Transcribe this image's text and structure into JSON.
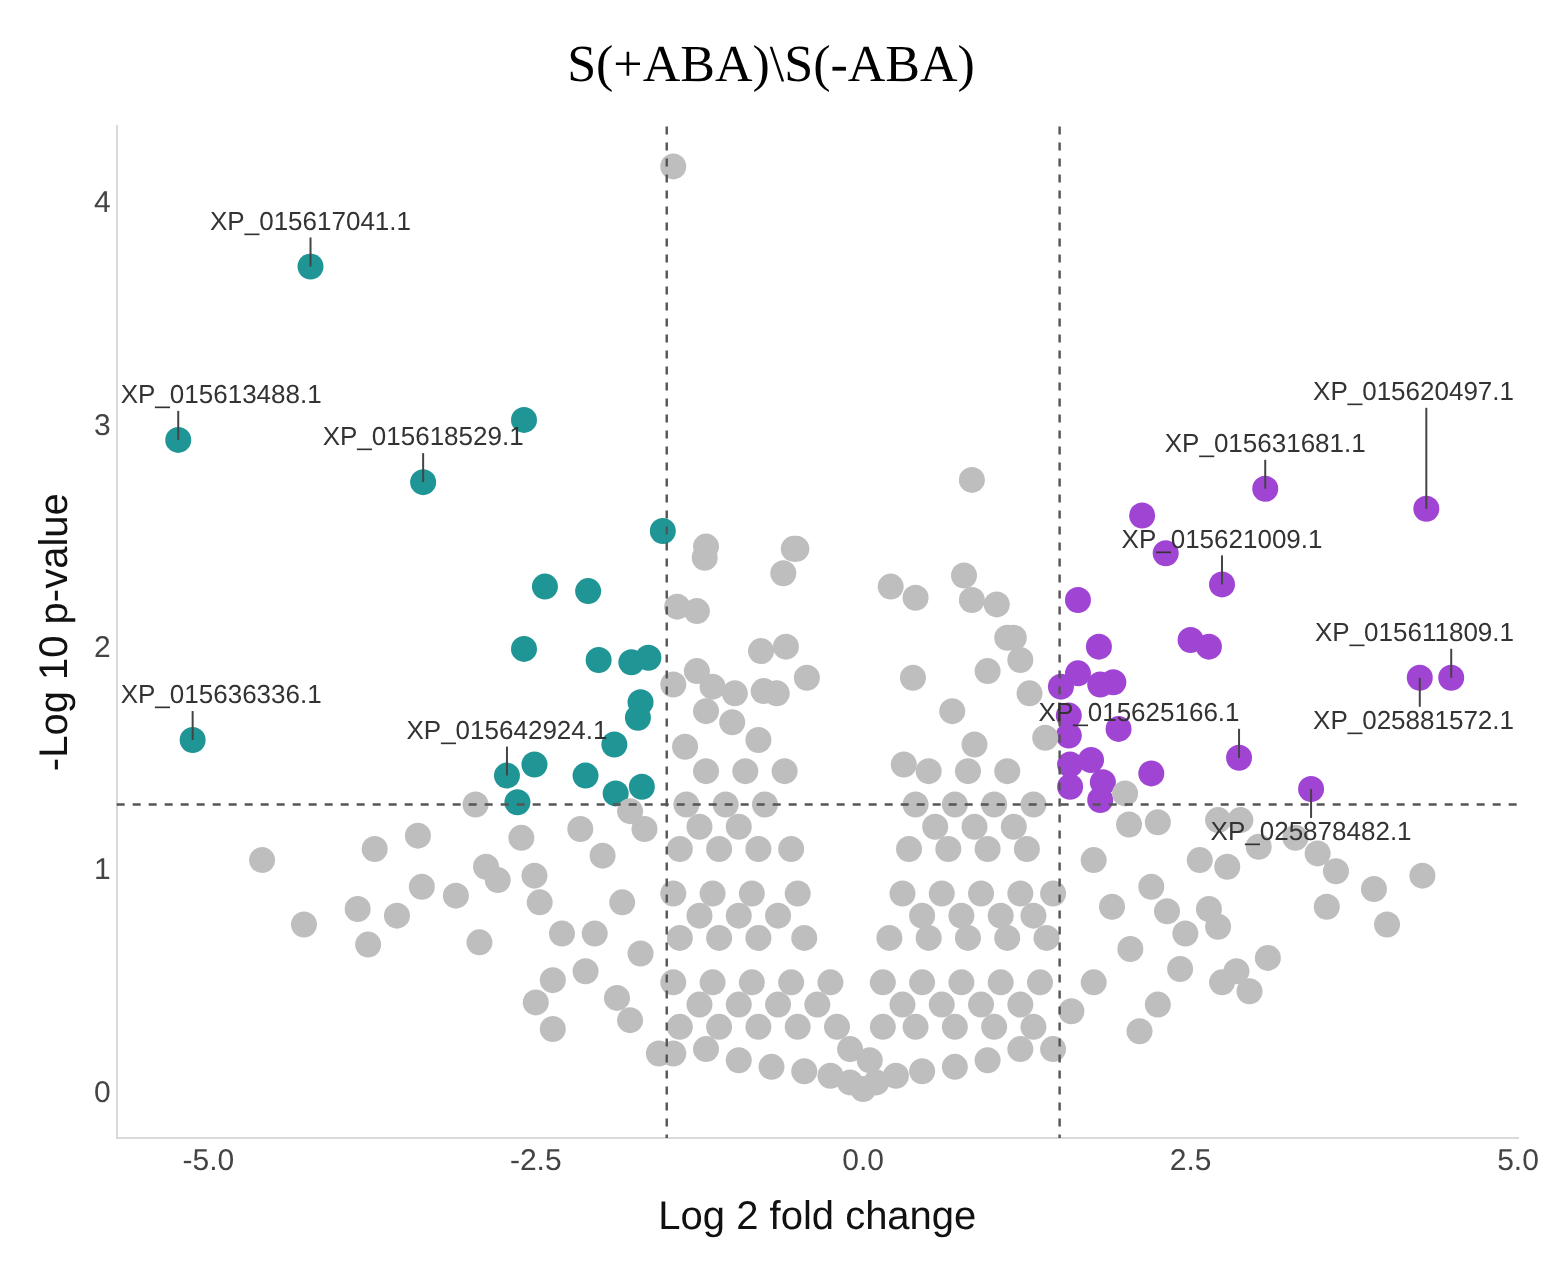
{
  "chart_data": {
    "type": "scatter",
    "title": "S(+ABA)\\S(-ABA)",
    "xlabel": "Log 2 fold change",
    "ylabel": "-Log 10 p-value",
    "xlim": [
      -5.7,
      5.0
    ],
    "ylim": [
      -0.2,
      4.35
    ],
    "xticks": [
      {
        "value": -5,
        "label": "-5.0"
      },
      {
        "value": -2.5,
        "label": "-2.5"
      },
      {
        "value": 0,
        "label": "0.0"
      },
      {
        "value": 2.5,
        "label": "2.5"
      },
      {
        "value": 5,
        "label": "5.0"
      }
    ],
    "yticks": [
      0,
      1,
      2,
      3,
      4
    ],
    "marker": "circle",
    "grid": false,
    "series": [
      {
        "color": "#bebebe",
        "x": [
          -4.59,
          -4.27,
          -3.86,
          -3.78,
          -3.56,
          -3.73,
          -3.4,
          -3.37,
          -3.11,
          -2.93,
          -2.96,
          -2.88,
          -2.79,
          -2.5,
          -2.37,
          -2.37,
          -2.51,
          -2.47,
          -2.61,
          -2.3,
          -2.12,
          -2.16,
          -2.05,
          -1.99,
          -1.88,
          -1.78,
          -1.84,
          -1.7,
          -1.67,
          -1.56,
          -1.78,
          -1.45,
          -1.2,
          -1.21,
          -0.53,
          -0.61,
          -1.42,
          -1.27,
          -0.78,
          -0.59,
          -1.27,
          -1.45,
          -1.15,
          -0.98,
          -0.76,
          -0.66,
          -1.2,
          -1.0,
          -0.8,
          -1.36,
          0.83,
          -0.51,
          0.77,
          0.21,
          0.4,
          0.83,
          1.02,
          1.1,
          1.15,
          0.95,
          0.38,
          -0.43,
          1.2,
          1.27,
          0.68,
          0.85,
          1.39,
          0.31,
          2.03,
          2.25,
          2.57,
          2.64,
          2.32,
          2.46,
          2.71,
          2.42,
          2.25,
          2.11,
          2.85,
          3.09,
          2.95,
          2.74,
          2.78,
          3.02,
          3.3,
          3.47,
          3.61,
          3.54,
          3.9,
          4.0,
          4.27,
          2.88,
          2.71,
          1.76,
          1.9,
          2.04,
          1.76,
          1.59,
          2.0,
          2.2,
          0,
          -0.1,
          0.1,
          -0.25,
          0.25,
          -0.45,
          0.45,
          -0.7,
          0.7,
          -0.95,
          0.95,
          -1.2,
          1.2,
          -1.45,
          1.45,
          -1.4,
          -1.1,
          -0.8,
          -0.5,
          -0.2,
          0.15,
          0.4,
          0.7,
          1.0,
          1.3,
          -1.45,
          -1.15,
          -0.85,
          -0.55,
          -0.25,
          0.15,
          0.45,
          0.75,
          1.05,
          1.35,
          -1.4,
          -1.1,
          -0.8,
          -0.45,
          0.2,
          0.5,
          0.8,
          1.1,
          1.4,
          -1.45,
          -1.15,
          -0.85,
          -0.5,
          0.3,
          0.6,
          0.9,
          1.2,
          1.45,
          -1.4,
          -1.1,
          -0.8,
          -0.55,
          0.35,
          0.65,
          0.95,
          1.25,
          -1.35,
          -1.05,
          -0.75,
          0.4,
          0.7,
          1.0,
          1.3,
          -1.2,
          -0.9,
          -0.6,
          0.5,
          0.8,
          1.1,
          -1.25,
          -0.95,
          -0.65,
          -0.35,
          0.3,
          0.6,
          0.9,
          1.2,
          -1.25,
          -0.95,
          -0.65,
          0.45,
          0.75,
          1.05,
          1.3,
          -1.25,
          -0.95,
          0.55,
          0.85,
          1.15,
          -0.1,
          0.05
        ],
        "values": [
          1.05,
          0.76,
          0.83,
          0.67,
          0.8,
          1.1,
          1.16,
          0.93,
          0.89,
          0.68,
          1.3,
          1.02,
          0.96,
          0.41,
          0.29,
          0.51,
          0.98,
          0.86,
          1.15,
          0.72,
          0.55,
          1.19,
          0.72,
          1.07,
          0.43,
          0.33,
          0.86,
          0.63,
          1.19,
          0.18,
          1.27,
          4.17,
          2.46,
          2.41,
          2.45,
          2.34,
          2.19,
          2.17,
          1.99,
          2.01,
          1.9,
          1.84,
          1.83,
          1.8,
          1.81,
          1.8,
          1.72,
          1.67,
          1.59,
          1.56,
          2.76,
          2.45,
          2.33,
          2.28,
          2.23,
          2.22,
          2.2,
          2.05,
          2.05,
          1.9,
          1.87,
          1.87,
          1.95,
          1.8,
          1.72,
          1.57,
          1.6,
          1.48,
          1.21,
          1.22,
          1.05,
          0.83,
          0.82,
          0.72,
          0.75,
          0.56,
          0.4,
          0.28,
          0.55,
          0.61,
          0.46,
          0.5,
          1.02,
          1.11,
          1.15,
          1.08,
          1.0,
          0.84,
          0.92,
          0.76,
          0.98,
          1.23,
          1.23,
          1.05,
          0.84,
          0.65,
          0.5,
          0.37,
          1.35,
          0.93,
          0.02,
          0.05,
          0.05,
          0.08,
          0.08,
          0.1,
          0.1,
          0.12,
          0.12,
          0.15,
          0.15,
          0.2,
          0.2,
          0.18,
          0.2,
          0.3,
          0.3,
          0.3,
          0.3,
          0.3,
          0.3,
          0.3,
          0.3,
          0.3,
          0.3,
          0.5,
          0.5,
          0.5,
          0.5,
          0.5,
          0.5,
          0.5,
          0.5,
          0.5,
          0.5,
          0.7,
          0.7,
          0.7,
          0.7,
          0.7,
          0.7,
          0.7,
          0.7,
          0.7,
          0.9,
          0.9,
          0.9,
          0.9,
          0.9,
          0.9,
          0.9,
          0.9,
          0.9,
          1.1,
          1.1,
          1.1,
          1.1,
          1.1,
          1.1,
          1.1,
          1.1,
          1.3,
          1.3,
          1.3,
          1.3,
          1.3,
          1.3,
          1.3,
          1.45,
          1.45,
          1.45,
          1.45,
          1.45,
          1.45,
          0.4,
          0.4,
          0.4,
          0.4,
          0.4,
          0.4,
          0.4,
          0.4,
          0.8,
          0.8,
          0.8,
          0.8,
          0.8,
          0.8,
          0.8,
          1.2,
          1.2,
          1.2,
          1.2,
          1.2,
          0.2,
          0.15
        ]
      },
      {
        "color": "#1f9595",
        "x": [
          -4.22,
          -5.23,
          -2.59,
          -3.36,
          -1.53,
          -2.43,
          -2.1,
          -2.59,
          -2.02,
          -1.77,
          -1.64,
          -1.7,
          -1.72,
          -5.12,
          -1.9,
          -2.72,
          -2.51,
          -2.12,
          -1.89,
          -1.69,
          -2.64
        ],
        "values": [
          3.72,
          2.94,
          3.03,
          2.75,
          2.53,
          2.28,
          2.26,
          2.0,
          1.95,
          1.94,
          1.96,
          1.76,
          1.69,
          1.59,
          1.57,
          1.43,
          1.48,
          1.43,
          1.35,
          1.38,
          1.31
        ]
      },
      {
        "color": "#a044d4",
        "x": [
          3.07,
          4.3,
          2.13,
          2.31,
          2.74,
          1.64,
          2.5,
          2.64,
          1.8,
          1.64,
          1.81,
          1.91,
          4.25,
          4.49,
          1.51,
          1.57,
          1.95,
          1.57,
          2.87,
          1.58,
          1.74,
          2.2,
          1.58,
          1.83,
          3.42,
          1.81
        ],
        "values": [
          2.72,
          2.63,
          2.6,
          2.43,
          2.29,
          2.22,
          2.04,
          2.01,
          2.01,
          1.89,
          1.84,
          1.85,
          1.87,
          1.87,
          1.83,
          1.7,
          1.64,
          1.61,
          1.51,
          1.48,
          1.5,
          1.44,
          1.38,
          1.4,
          1.37,
          1.32
        ]
      }
    ],
    "ref_lines": [
      {
        "axis": "x",
        "value": -1.5,
        "color": "#555555",
        "line_style": "dashed"
      },
      {
        "axis": "x",
        "value": 1.5,
        "color": "#555555",
        "line_style": "dashed"
      },
      {
        "axis": "y",
        "value": 1.3,
        "color": "#555555",
        "line_style": "dashed"
      }
    ],
    "annotations": [
      {
        "text": "XP_015617041.1",
        "x": -4.22,
        "y": 3.72
      },
      {
        "text": "XP_015613488.1",
        "x": -5.23,
        "y": 2.94
      },
      {
        "text": "XP_015618529.1",
        "x": -3.36,
        "y": 2.75
      },
      {
        "text": "XP_015636336.1",
        "x": -5.12,
        "y": 1.59
      },
      {
        "text": "XP_015642924.1",
        "x": -2.72,
        "y": 1.43
      },
      {
        "text": "XP_015631681.1",
        "x": 3.07,
        "y": 2.72
      },
      {
        "text": "XP_015620497.1",
        "x": 4.3,
        "y": 2.63
      },
      {
        "text": "XP_015621009.1",
        "x": 2.74,
        "y": 2.29
      },
      {
        "text": "XP_015611809.1",
        "x": 4.49,
        "y": 1.87
      },
      {
        "text": "XP_025881572.1",
        "x": 4.25,
        "y": 1.87
      },
      {
        "text": "XP_015625166.1",
        "x": 2.87,
        "y": 1.51
      },
      {
        "text": "XP_025878482.1",
        "x": 3.42,
        "y": 1.37
      }
    ]
  }
}
